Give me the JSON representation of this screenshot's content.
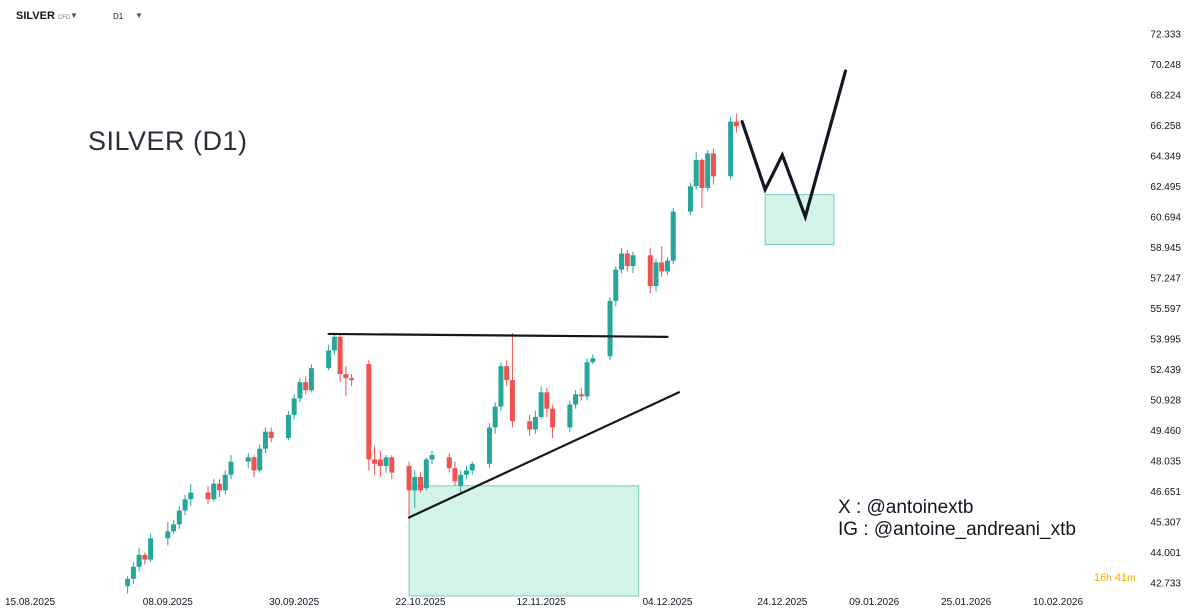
{
  "header": {
    "symbol": "SILVER",
    "symbol_type": "CFD",
    "timeframe": "D1"
  },
  "annotations": {
    "title": "SILVER (D1)",
    "social_x": "X : @antoinextb",
    "social_ig": "IG : @antoine_andreani_xtb"
  },
  "countdown": {
    "hours": "16",
    "h_unit": "h",
    "minutes": "41",
    "m_unit": "m"
  },
  "colors": {
    "up": "#26a69a",
    "down": "#ef5350",
    "zone_fill": "#d3f3e8",
    "zone_stroke": "#26a69a",
    "drawing": "#131722",
    "axis_text": "#131722"
  },
  "chart_data": {
    "type": "candlestick",
    "y_axis_side": "right",
    "ylim": [
      42.2,
      72.6
    ],
    "y_ticks": [
      72.333,
      70.248,
      68.224,
      66.258,
      64.349,
      62.495,
      60.694,
      58.945,
      57.247,
      55.597,
      53.995,
      52.439,
      50.928,
      49.46,
      48.035,
      46.651,
      45.307,
      44.001,
      42.733
    ],
    "y_tick_labels": [
      "72.333",
      "70.248",
      "68.224",
      "66.258",
      "64.349",
      "62.495",
      "60.694",
      "58.945",
      "57.247",
      "55.597",
      "53.995",
      "52.439",
      "50.928",
      "49.460",
      "48.035",
      "46.651",
      "45.307",
      "44.001",
      "42.733"
    ],
    "y_log_scale": true,
    "x_start": "2025-08-15",
    "x_end": "2026-02-10",
    "x_ticks": [
      "2025-08-15",
      "2025-09-08",
      "2025-09-30",
      "2025-10-22",
      "2025-11-12",
      "2025-12-04",
      "2025-12-24",
      "2026-01-09",
      "2026-01-25",
      "2026-02-10"
    ],
    "x_tick_labels": [
      "15.08.2025",
      "08.09.2025",
      "30.09.2025",
      "22.10.2025",
      "12.11.2025",
      "04.12.2025",
      "24.12.2025",
      "09.01.2026",
      "25.01.2026",
      "10.02.2026"
    ],
    "candles": [
      {
        "date": "2025-09-01",
        "o": 42.6,
        "h": 43.0,
        "l": 42.3,
        "c": 42.9
      },
      {
        "date": "2025-09-02",
        "o": 42.9,
        "h": 43.6,
        "l": 42.7,
        "c": 43.4
      },
      {
        "date": "2025-09-03",
        "o": 43.4,
        "h": 44.2,
        "l": 43.2,
        "c": 43.9
      },
      {
        "date": "2025-09-04",
        "o": 43.9,
        "h": 44.0,
        "l": 43.5,
        "c": 43.7
      },
      {
        "date": "2025-09-05",
        "o": 43.7,
        "h": 44.8,
        "l": 43.6,
        "c": 44.6
      },
      {
        "date": "2025-09-08",
        "o": 44.6,
        "h": 45.3,
        "l": 44.3,
        "c": 44.9
      },
      {
        "date": "2025-09-09",
        "o": 44.9,
        "h": 45.4,
        "l": 44.8,
        "c": 45.2
      },
      {
        "date": "2025-09-10",
        "o": 45.2,
        "h": 46.0,
        "l": 45.0,
        "c": 45.8
      },
      {
        "date": "2025-09-11",
        "o": 45.8,
        "h": 46.5,
        "l": 45.6,
        "c": 46.3
      },
      {
        "date": "2025-09-12",
        "o": 46.3,
        "h": 47.0,
        "l": 46.0,
        "c": 46.6
      },
      {
        "date": "2025-09-15",
        "o": 46.6,
        "h": 46.9,
        "l": 46.1,
        "c": 46.3
      },
      {
        "date": "2025-09-16",
        "o": 46.3,
        "h": 47.2,
        "l": 46.2,
        "c": 47.0
      },
      {
        "date": "2025-09-17",
        "o": 47.0,
        "h": 47.2,
        "l": 46.4,
        "c": 46.7
      },
      {
        "date": "2025-09-18",
        "o": 46.7,
        "h": 47.6,
        "l": 46.5,
        "c": 47.4
      },
      {
        "date": "2025-09-19",
        "o": 47.4,
        "h": 48.3,
        "l": 47.2,
        "c": 48.0
      },
      {
        "date": "2025-09-22",
        "o": 48.0,
        "h": 48.4,
        "l": 47.7,
        "c": 48.2
      },
      {
        "date": "2025-09-23",
        "o": 48.2,
        "h": 48.3,
        "l": 47.3,
        "c": 47.6
      },
      {
        "date": "2025-09-24",
        "o": 47.6,
        "h": 48.8,
        "l": 47.5,
        "c": 48.6
      },
      {
        "date": "2025-09-25",
        "o": 48.6,
        "h": 49.6,
        "l": 48.4,
        "c": 49.4
      },
      {
        "date": "2025-09-26",
        "o": 49.4,
        "h": 49.6,
        "l": 48.9,
        "c": 49.1
      },
      {
        "date": "2025-09-29",
        "o": 49.1,
        "h": 50.4,
        "l": 49.0,
        "c": 50.2
      },
      {
        "date": "2025-09-30",
        "o": 50.2,
        "h": 51.2,
        "l": 50.0,
        "c": 51.0
      },
      {
        "date": "2025-10-01",
        "o": 51.0,
        "h": 52.0,
        "l": 50.8,
        "c": 51.8
      },
      {
        "date": "2025-10-02",
        "o": 51.8,
        "h": 52.1,
        "l": 51.2,
        "c": 51.4
      },
      {
        "date": "2025-10-03",
        "o": 51.4,
        "h": 52.7,
        "l": 51.3,
        "c": 52.5
      },
      {
        "date": "2025-10-06",
        "o": 52.5,
        "h": 53.7,
        "l": 52.4,
        "c": 53.4
      },
      {
        "date": "2025-10-07",
        "o": 53.4,
        "h": 54.3,
        "l": 53.2,
        "c": 54.1
      },
      {
        "date": "2025-10-08",
        "o": 54.1,
        "h": 54.3,
        "l": 51.8,
        "c": 52.2
      },
      {
        "date": "2025-10-09",
        "o": 52.2,
        "h": 52.6,
        "l": 51.1,
        "c": 52.0
      },
      {
        "date": "2025-10-10",
        "o": 52.0,
        "h": 52.2,
        "l": 51.6,
        "c": 51.9
      },
      {
        "date": "2025-10-13",
        "o": 52.7,
        "h": 52.9,
        "l": 47.6,
        "c": 48.1
      },
      {
        "date": "2025-10-14",
        "o": 48.1,
        "h": 48.7,
        "l": 47.4,
        "c": 47.9
      },
      {
        "date": "2025-10-15",
        "o": 48.1,
        "h": 48.5,
        "l": 47.3,
        "c": 47.8
      },
      {
        "date": "2025-10-16",
        "o": 47.8,
        "h": 48.3,
        "l": 47.5,
        "c": 48.2
      },
      {
        "date": "2025-10-17",
        "o": 48.2,
        "h": 48.3,
        "l": 47.2,
        "c": 47.5
      },
      {
        "date": "2025-10-20",
        "o": 47.8,
        "h": 48.0,
        "l": 45.6,
        "c": 46.7
      },
      {
        "date": "2025-10-21",
        "o": 46.7,
        "h": 47.6,
        "l": 45.9,
        "c": 47.3
      },
      {
        "date": "2025-10-22",
        "o": 47.3,
        "h": 47.5,
        "l": 46.6,
        "c": 46.7
      },
      {
        "date": "2025-10-23",
        "o": 46.8,
        "h": 48.2,
        "l": 46.7,
        "c": 48.1
      },
      {
        "date": "2025-10-24",
        "o": 48.1,
        "h": 48.5,
        "l": 47.9,
        "c": 48.3
      },
      {
        "date": "2025-10-27",
        "o": 48.2,
        "h": 48.4,
        "l": 47.5,
        "c": 47.7
      },
      {
        "date": "2025-10-28",
        "o": 47.7,
        "h": 48.0,
        "l": 46.9,
        "c": 47.1
      },
      {
        "date": "2025-10-29",
        "o": 46.9,
        "h": 47.6,
        "l": 46.5,
        "c": 47.4
      },
      {
        "date": "2025-10-30",
        "o": 47.4,
        "h": 47.8,
        "l": 47.2,
        "c": 47.6
      },
      {
        "date": "2025-10-31",
        "o": 47.6,
        "h": 48.0,
        "l": 47.4,
        "c": 47.9
      },
      {
        "date": "2025-11-03",
        "o": 47.9,
        "h": 49.8,
        "l": 47.7,
        "c": 49.6
      },
      {
        "date": "2025-11-04",
        "o": 49.6,
        "h": 50.8,
        "l": 49.3,
        "c": 50.6
      },
      {
        "date": "2025-11-05",
        "o": 50.6,
        "h": 52.8,
        "l": 50.4,
        "c": 52.6
      },
      {
        "date": "2025-11-06",
        "o": 52.6,
        "h": 52.9,
        "l": 51.6,
        "c": 51.9
      },
      {
        "date": "2025-11-07",
        "o": 51.9,
        "h": 54.3,
        "l": 49.6,
        "c": 49.9
      },
      {
        "date": "2025-11-10",
        "o": 49.9,
        "h": 50.2,
        "l": 49.2,
        "c": 49.5
      },
      {
        "date": "2025-11-11",
        "o": 49.5,
        "h": 50.4,
        "l": 49.3,
        "c": 50.1
      },
      {
        "date": "2025-11-12",
        "o": 50.1,
        "h": 51.6,
        "l": 50.0,
        "c": 51.3
      },
      {
        "date": "2025-11-13",
        "o": 51.3,
        "h": 51.5,
        "l": 50.1,
        "c": 50.5
      },
      {
        "date": "2025-11-14",
        "o": 50.5,
        "h": 50.7,
        "l": 49.1,
        "c": 49.6
      },
      {
        "date": "2025-11-17",
        "o": 49.6,
        "h": 50.9,
        "l": 49.4,
        "c": 50.7
      },
      {
        "date": "2025-11-18",
        "o": 50.7,
        "h": 51.4,
        "l": 50.5,
        "c": 51.2
      },
      {
        "date": "2025-11-19",
        "o": 51.2,
        "h": 51.5,
        "l": 50.9,
        "c": 51.1
      },
      {
        "date": "2025-11-20",
        "o": 51.1,
        "h": 53.0,
        "l": 50.9,
        "c": 52.8
      },
      {
        "date": "2025-11-21",
        "o": 52.8,
        "h": 53.2,
        "l": 52.7,
        "c": 53.0
      },
      {
        "date": "2025-11-24",
        "o": 53.1,
        "h": 56.2,
        "l": 52.9,
        "c": 56.0
      },
      {
        "date": "2025-11-25",
        "o": 56.0,
        "h": 57.9,
        "l": 55.7,
        "c": 57.7
      },
      {
        "date": "2025-11-26",
        "o": 57.7,
        "h": 58.9,
        "l": 57.5,
        "c": 58.6
      },
      {
        "date": "2025-11-27",
        "o": 58.6,
        "h": 58.8,
        "l": 57.6,
        "c": 57.9
      },
      {
        "date": "2025-11-28",
        "o": 57.9,
        "h": 58.7,
        "l": 57.5,
        "c": 58.5
      },
      {
        "date": "2025-12-01",
        "o": 58.5,
        "h": 58.9,
        "l": 56.4,
        "c": 56.8
      },
      {
        "date": "2025-12-02",
        "o": 56.8,
        "h": 58.3,
        "l": 56.5,
        "c": 58.1
      },
      {
        "date": "2025-12-03",
        "o": 58.1,
        "h": 59.0,
        "l": 57.3,
        "c": 57.6
      },
      {
        "date": "2025-12-04",
        "o": 57.6,
        "h": 58.4,
        "l": 57.4,
        "c": 58.2
      },
      {
        "date": "2025-12-05",
        "o": 58.2,
        "h": 61.2,
        "l": 58.0,
        "c": 61.0
      },
      {
        "date": "2025-12-08",
        "o": 61.0,
        "h": 62.7,
        "l": 60.8,
        "c": 62.5
      },
      {
        "date": "2025-12-09",
        "o": 62.5,
        "h": 64.6,
        "l": 62.3,
        "c": 64.1
      },
      {
        "date": "2025-12-10",
        "o": 64.1,
        "h": 64.2,
        "l": 61.2,
        "c": 62.4
      },
      {
        "date": "2025-12-11",
        "o": 62.4,
        "h": 64.7,
        "l": 62.2,
        "c": 64.5
      },
      {
        "date": "2025-12-12",
        "o": 64.5,
        "h": 64.8,
        "l": 62.6,
        "c": 63.1
      },
      {
        "date": "2025-12-15",
        "o": 63.1,
        "h": 66.8,
        "l": 62.9,
        "c": 66.5
      },
      {
        "date": "2025-12-16",
        "o": 66.5,
        "h": 67.0,
        "l": 65.8,
        "c": 66.2
      }
    ],
    "trendlines": [
      {
        "type": "resistance",
        "from": {
          "date": "2025-10-06",
          "price": 54.25
        },
        "to": {
          "date": "2025-12-04",
          "price": 54.1
        }
      },
      {
        "type": "support",
        "from": {
          "date": "2025-10-20",
          "price": 45.5
        },
        "to": {
          "date": "2025-12-06",
          "price": 51.3
        }
      }
    ],
    "zones": [
      {
        "from_date": "2025-10-20",
        "to_date": "2025-11-29",
        "top": 46.9,
        "bottom": 42.2
      },
      {
        "from_date": "2025-12-21",
        "to_date": "2026-01-02",
        "top": 62.0,
        "bottom": 59.1
      }
    ],
    "projection": [
      {
        "date": "2025-12-17",
        "price": 66.5
      },
      {
        "date": "2025-12-21",
        "price": 62.3
      },
      {
        "date": "2025-12-24",
        "price": 64.4
      },
      {
        "date": "2025-12-28",
        "price": 60.7
      },
      {
        "date": "2026-01-04",
        "price": 69.8
      }
    ]
  }
}
